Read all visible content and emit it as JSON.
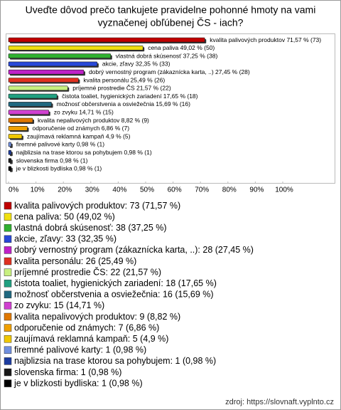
{
  "chart_data": {
    "type": "bar",
    "orientation": "horizontal",
    "title": [
      "Uveďte dôvod prečo tankujete pravidelne pohonné hmoty na vami",
      "vyznačenej obľúbenej ČS - iach?"
    ],
    "values": [
      71.57,
      49.02,
      37.25,
      32.35,
      27.45,
      25.49,
      21.57,
      17.65,
      15.69,
      14.71,
      8.82,
      6.86,
      4.9,
      0.98,
      0.98,
      0.98,
      0.98
    ],
    "value_labels": [
      "kvalita palivových produktov 71,57 % (73)",
      "cena paliva 49,02 % (50)",
      "vlastná dobrá skúsenosť 37,25 % (38)",
      "akcie, zľavy 32,35 % (33)",
      "dobrý vernostný program (zákaznícka karta, ..) 27,45 % (28)",
      "kvalita personálu 25,49 % (26)",
      "príjemné prostredie ČS 21,57 % (22)",
      "čistota toaliet, hygienických zariadení 17,65 % (18)",
      "možnosť občerstvenia a osviežečnia 15,69 % (16)",
      "zo zvyku 14,71 % (15)",
      "kvalita nepalivových produktov 8,82 % (9)",
      "odporučenie od známych 6,86 % (7)",
      "zaujímavá reklamná kampaň 4,9 % (5)",
      "firemné palivové karty 0,98 % (1)",
      "najblizsia na trase ktorou sa pohybujem 0,98 % (1)",
      "slovenska firma 0,98 % (1)",
      "je v blizkosti bydliska 0,98 % (1)"
    ],
    "legend_labels": [
      "kvalita palivových produktov: 73 (71,57 %)",
      "cena paliva: 50 (49,02 %)",
      "vlastná dobrá skúsenosť: 38 (37,25 %)",
      "akcie, zľavy: 33 (32,35 %)",
      "dobrý vernostný program (zákaznícka karta, ..): 28 (27,45 %)",
      "kvalita personálu: 26 (25,49 %)",
      "príjemné prostredie ČS: 22 (21,57 %)",
      "čistota toaliet, hygienických zariadení: 18 (17,65 %)",
      "možnosť občerstvenia a osviežečnia: 16 (15,69 %)",
      "zo zvyku: 15 (14,71 %)",
      "kvalita nepalivových produktov: 9 (8,82 %)",
      "odporučenie od známych: 7 (6,86 %)",
      "zaujímavá reklamná kampaň: 5 (4,9 %)",
      "firemné palivové karty: 1 (0,98 %)",
      "najblizsia na trase ktorou sa pohybujem: 1 (0,98 %)",
      "slovenska firma: 1 (0,98 %)",
      "je v blizkosti bydliska: 1 (0,98 %)"
    ],
    "colors": [
      "#c00000",
      "#f0e010",
      "#30b030",
      "#2848d8",
      "#c020c8",
      "#e03020",
      "#c8f080",
      "#20a080",
      "#206880",
      "#d040d0",
      "#e07800",
      "#f0a000",
      "#f0c800",
      "#7090e0",
      "#1c3ca0",
      "#181818",
      "#000000"
    ],
    "xlim": [
      0,
      100
    ],
    "xticks": [
      {
        "value": 0,
        "label": "0%"
      },
      {
        "value": 10,
        "label": "10%"
      },
      {
        "value": 20,
        "label": "20%"
      },
      {
        "value": 30,
        "label": "30%"
      },
      {
        "value": 40,
        "label": "40%"
      },
      {
        "value": 50,
        "label": "50%"
      },
      {
        "value": 60,
        "label": "60%"
      },
      {
        "value": 70,
        "label": "70%"
      },
      {
        "value": 80,
        "label": "80%"
      },
      {
        "value": 90,
        "label": "90%"
      },
      {
        "value": 100,
        "label": "100%"
      }
    ],
    "footer": "zdroj: https://slovnaft.vyplnto.cz"
  }
}
